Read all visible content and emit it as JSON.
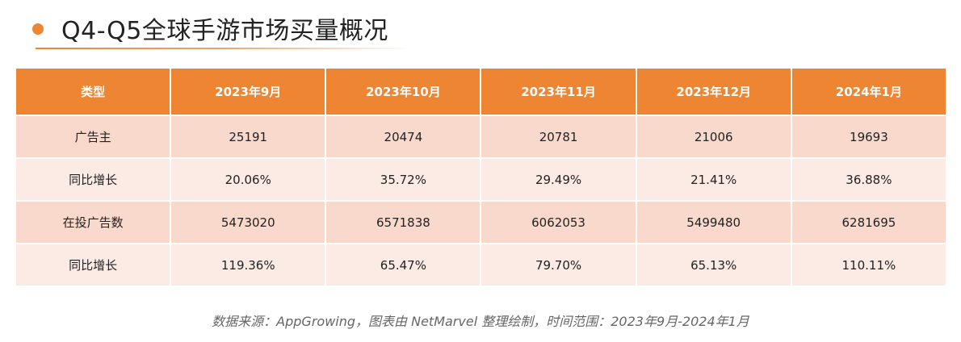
{
  "header": {
    "title": "Q4-Q5全球手游市场买量概况"
  },
  "colors": {
    "accent": "#ee8533",
    "row_dark": "#f9d9cc",
    "row_light": "#fcebe5"
  },
  "table": {
    "columns": [
      "类型",
      "2023年9月",
      "2023年10月",
      "2023年11月",
      "2023年12月",
      "2024年1月"
    ],
    "rows": [
      [
        "广告主",
        "25191",
        "20474",
        "20781",
        "21006",
        "19693"
      ],
      [
        "同比增长",
        "20.06%",
        "35.72%",
        "29.49%",
        "21.41%",
        "36.88%"
      ],
      [
        "在投广告数",
        "5473020",
        "6571838",
        "6062053",
        "5499480",
        "6281695"
      ],
      [
        "同比增长",
        "119.36%",
        "65.47%",
        "79.70%",
        "65.13%",
        "110.11%"
      ]
    ]
  },
  "footer": {
    "source": "数据来源：AppGrowing，图表由 NetMarvel 整理绘制，时间范围：2023年9月-2024年1月"
  }
}
